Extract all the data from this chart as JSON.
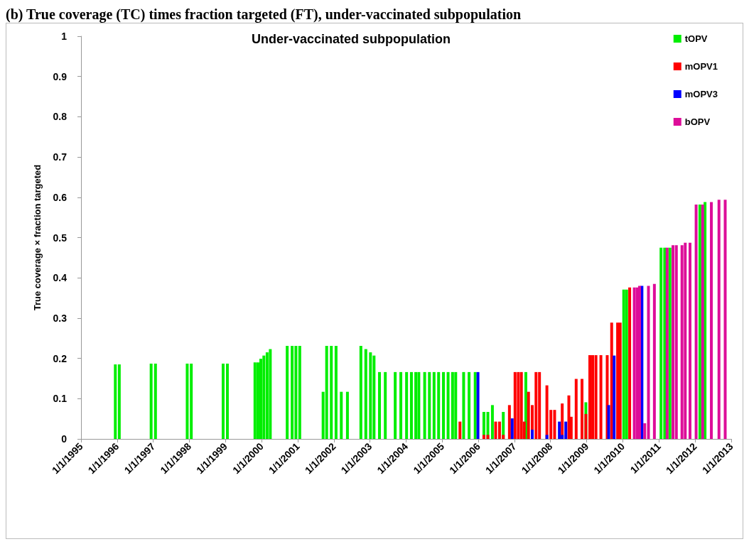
{
  "chart_data": {
    "type": "bar",
    "title": "Under-vaccinated subpopulation",
    "ylabel": "True coverage × fraction targeted",
    "annotations": [
      "(b)   True coverage (TC) times fraction targeted (FT), under-vaccinated subpopulation"
    ],
    "legend": "top right",
    "xlim": [
      "1995-01-01",
      "2013-01-01"
    ],
    "xticks": [
      {
        "value": "1995-01-01",
        "label": "1/1/1995"
      },
      {
        "value": "1996-01-01",
        "label": "1/1/1996"
      },
      {
        "value": "1997-01-01",
        "label": "1/1/1997"
      },
      {
        "value": "1998-01-01",
        "label": "1/1/1998"
      },
      {
        "value": "1999-01-01",
        "label": "1/1/1999"
      },
      {
        "value": "2000-01-01",
        "label": "1/1/2000"
      },
      {
        "value": "2001-01-01",
        "label": "1/1/2001"
      },
      {
        "value": "2002-01-01",
        "label": "1/1/2002"
      },
      {
        "value": "2003-01-01",
        "label": "1/1/2003"
      },
      {
        "value": "2004-01-01",
        "label": "1/1/2004"
      },
      {
        "value": "2005-01-01",
        "label": "1/1/2005"
      },
      {
        "value": "2006-01-01",
        "label": "1/1/2006"
      },
      {
        "value": "2007-01-01",
        "label": "1/1/2007"
      },
      {
        "value": "2008-01-01",
        "label": "1/1/2008"
      },
      {
        "value": "2009-01-01",
        "label": "1/1/2009"
      },
      {
        "value": "2010-01-01",
        "label": "1/1/2010"
      },
      {
        "value": "2011-01-01",
        "label": "1/1/2011"
      },
      {
        "value": "2012-01-01",
        "label": "1/1/2012"
      },
      {
        "value": "2013-01-01",
        "label": "1/1/2013"
      }
    ],
    "ylim": [
      0,
      1
    ],
    "yticks": [
      0,
      0.1,
      0.2,
      0.3,
      0.4,
      0.5,
      0.6,
      0.7,
      0.8,
      0.9,
      1
    ],
    "series": [
      {
        "name": "tOPV",
        "color": "#00ee00",
        "x": [
          "1995-12-14",
          "1996-01-23",
          "1996-12-10",
          "1997-01-23",
          "1997-12-10",
          "1998-01-20",
          "1998-12-08",
          "1999-01-20",
          "1999-10-26",
          "1999-11-25",
          "1999-12-24",
          "2000-01-24",
          "2000-02-26",
          "2000-03-29",
          "2000-09-16",
          "2000-11-05",
          "2000-12-13",
          "2001-01-21",
          "2001-09-14",
          "2001-10-20",
          "2001-12-06",
          "2002-01-23",
          "2002-03-17",
          "2002-05-18",
          "2002-10-01",
          "2002-11-20",
          "2003-01-06",
          "2003-02-11",
          "2003-04-07",
          "2003-06-05",
          "2003-09-13",
          "2003-11-09",
          "2004-01-06",
          "2004-02-24",
          "2004-04-08",
          "2004-05-09",
          "2004-07-07",
          "2004-08-24",
          "2004-10-10",
          "2004-11-25",
          "2005-01-13",
          "2005-03-01",
          "2005-04-15",
          "2005-05-17",
          "2005-08-05",
          "2005-09-29",
          "2005-11-30",
          "2006-02-26",
          "2006-04-07",
          "2006-05-23",
          "2006-09-10",
          "2007-04-26",
          "2008-12-23",
          "2010-01-10",
          "2010-02-08",
          "2011-01-22",
          "2011-02-28",
          "2011-04-22",
          "2012-02-19",
          "2012-04-11"
        ],
        "values": [
          0.185,
          0.185,
          0.187,
          0.187,
          0.187,
          0.187,
          0.187,
          0.187,
          0.19,
          0.19,
          0.199,
          0.207,
          0.215,
          0.223,
          0.231,
          0.231,
          0.231,
          0.231,
          0.117,
          0.231,
          0.231,
          0.231,
          0.117,
          0.117,
          0.231,
          0.223,
          0.215,
          0.207,
          0.166,
          0.166,
          0.166,
          0.166,
          0.166,
          0.166,
          0.166,
          0.166,
          0.166,
          0.166,
          0.166,
          0.166,
          0.166,
          0.166,
          0.166,
          0.166,
          0.166,
          0.166,
          0.166,
          0.067,
          0.067,
          0.084,
          0.067,
          0.166,
          0.091,
          0.371,
          0.371,
          0.475,
          0.475,
          0.475,
          0.582,
          0.588
        ]
      },
      {
        "name": "mOPV1",
        "color": "#ff0000",
        "x": [
          "2005-06-29",
          "2006-02-26",
          "2006-04-07",
          "2006-06-25",
          "2006-08-03",
          "2006-09-10",
          "2006-11-11",
          "2007-01-07",
          "2007-02-09",
          "2007-03-12",
          "2007-04-10",
          "2007-05-23",
          "2007-06-30",
          "2007-08-07",
          "2007-09-11",
          "2007-11-25",
          "2008-01-04",
          "2008-02-11",
          "2008-04-28",
          "2008-07-04",
          "2008-07-28",
          "2008-09-16",
          "2008-11-14",
          "2008-12-23",
          "2009-02-01",
          "2009-03-02",
          "2009-04-04",
          "2009-05-24",
          "2009-07-27",
          "2009-09-10",
          "2009-11-09",
          "2009-12-05",
          "2010-03-11"
        ],
        "values": [
          0.043,
          0.01,
          0.01,
          0.043,
          0.043,
          0.01,
          0.084,
          0.166,
          0.166,
          0.166,
          0.043,
          0.117,
          0.084,
          0.166,
          0.166,
          0.133,
          0.072,
          0.072,
          0.088,
          0.108,
          0.055,
          0.149,
          0.149,
          0.062,
          0.208,
          0.208,
          0.208,
          0.208,
          0.208,
          0.289,
          0.289,
          0.289,
          0.376
        ]
      },
      {
        "name": "mOPV3",
        "color": "#0000ff",
        "x": [
          "2005-12-28",
          "2006-12-09",
          "2007-06-30",
          "2007-11-25",
          "2008-03-30",
          "2008-04-28",
          "2008-06-03",
          "2009-08-11",
          "2009-10-05",
          "2010-07-13"
        ],
        "values": [
          0.166,
          0.051,
          0.023,
          0.01,
          0.043,
          0.01,
          0.043,
          0.084,
          0.207,
          0.38
        ]
      },
      {
        "name": "bOPV",
        "color": "#dd0d99",
        "x": [
          "2010-04-27",
          "2010-05-26",
          "2010-06-19",
          "2010-08-10",
          "2010-09-17",
          "2010-11-16",
          "2011-03-25",
          "2011-05-23",
          "2011-06-26",
          "2011-08-22",
          "2011-09-24",
          "2011-11-11",
          "2012-01-12",
          "2012-03-18",
          "2012-06-14",
          "2012-08-30",
          "2012-11-01"
        ],
        "values": [
          0.376,
          0.376,
          0.38,
          0.039,
          0.38,
          0.385,
          0.475,
          0.481,
          0.481,
          0.481,
          0.487,
          0.487,
          0.582,
          0.582,
          0.588,
          0.594,
          0.594
        ]
      }
    ]
  }
}
